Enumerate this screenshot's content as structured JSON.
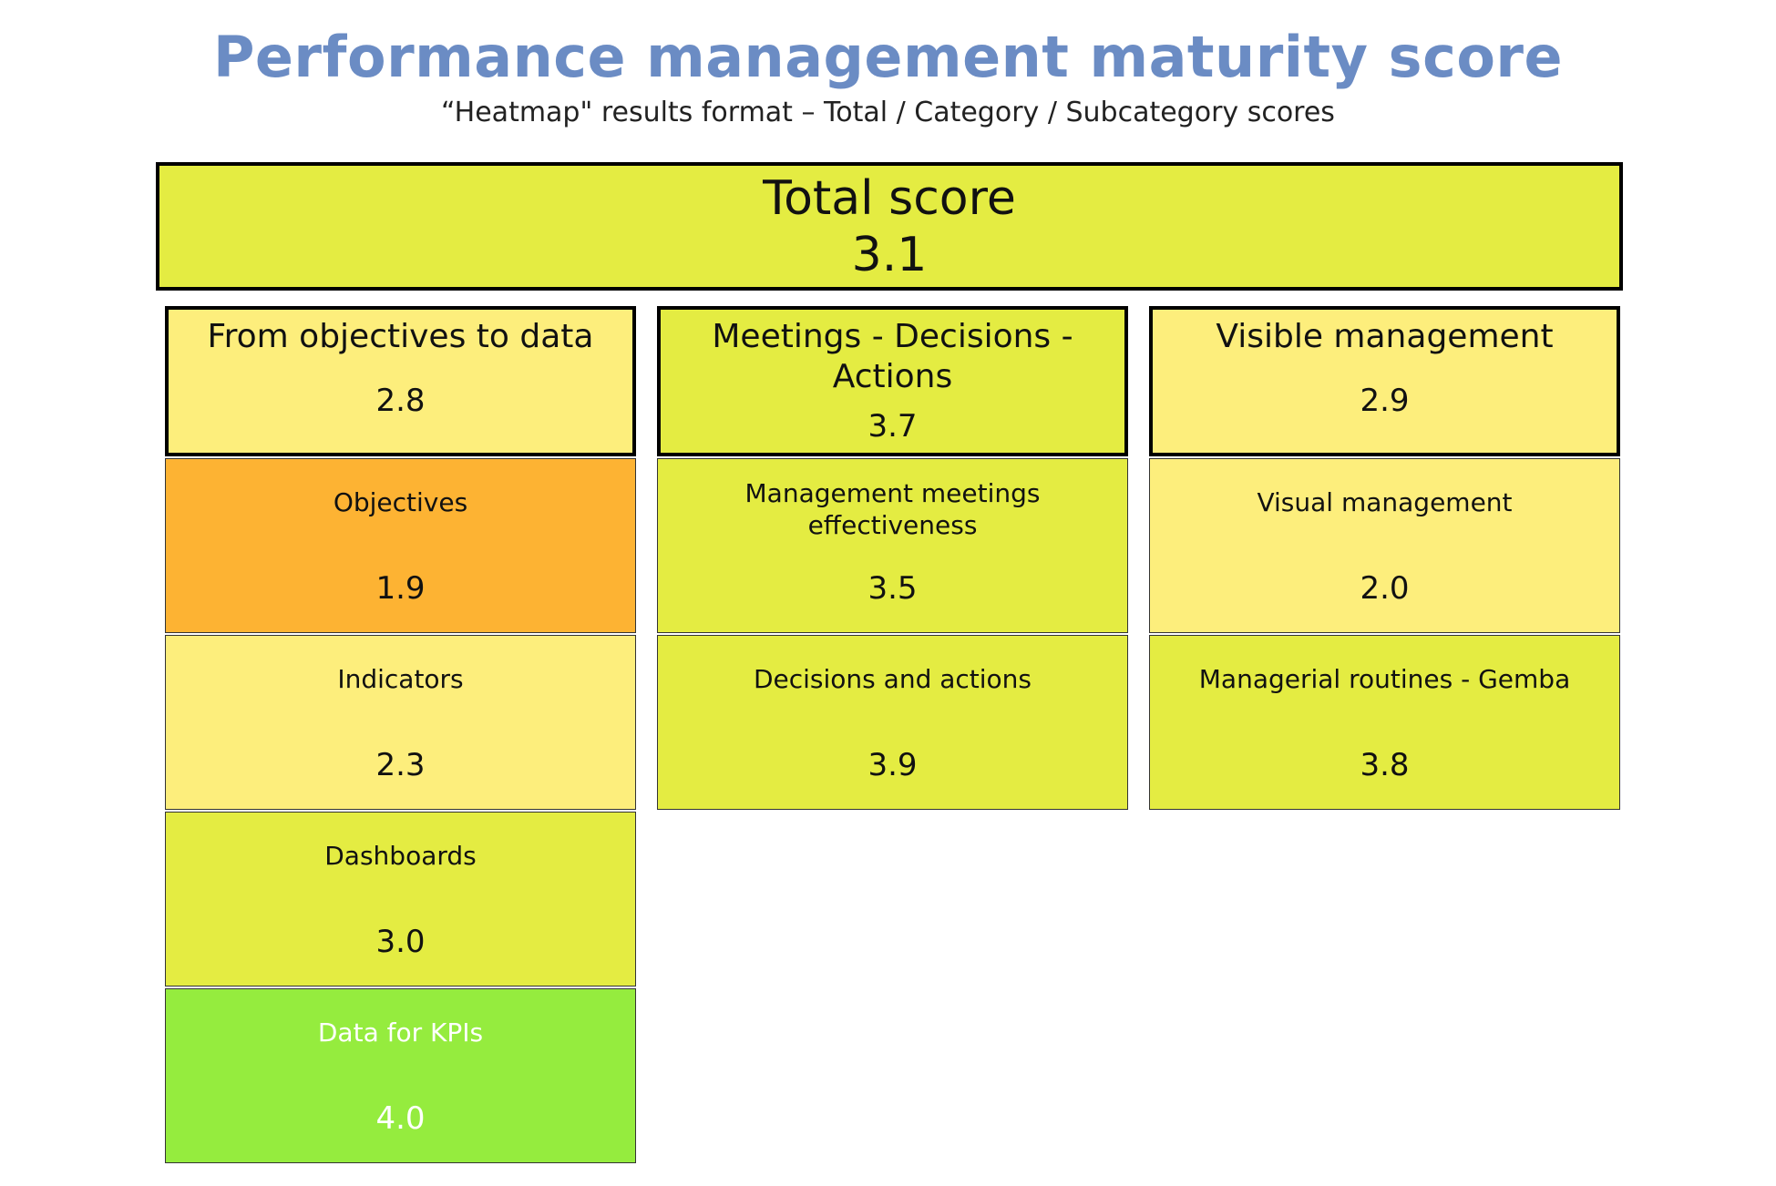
{
  "title": "Performance management maturity score",
  "subtitle": "“Heatmap\" results format – Total / Category / Subcategory scores",
  "total": {
    "label": "Total score",
    "value": "3.1",
    "color": "#e4ec42"
  },
  "categories": [
    {
      "label": "From objectives to data",
      "value": "2.8",
      "color": "#fdee7c",
      "subcategories": [
        {
          "label": "Objectives",
          "value": "1.9",
          "color": "#fdb333"
        },
        {
          "label": "Indicators",
          "value": "2.3",
          "color": "#fdee7c"
        },
        {
          "label": "Dashboards",
          "value": "3.0",
          "color": "#e4ec42"
        },
        {
          "label": "Data for KPIs",
          "value": "4.0",
          "color": "#95ec3e"
        }
      ]
    },
    {
      "label": "Meetings - Decisions - Actions",
      "value": "3.7",
      "color": "#e4ec42",
      "subcategories": [
        {
          "label": "Management meetings effectiveness",
          "value": "3.5",
          "color": "#e4ec42"
        },
        {
          "label": "Decisions and actions",
          "value": "3.9",
          "color": "#e4ec42"
        }
      ]
    },
    {
      "label": "Visible management",
      "value": "2.9",
      "color": "#fdee7c",
      "subcategories": [
        {
          "label": "Visual management",
          "value": "2.0",
          "color": "#fdee7c"
        },
        {
          "label": "Managerial routines - Gemba",
          "value": "3.8",
          "color": "#e4ec42"
        }
      ]
    }
  ]
}
